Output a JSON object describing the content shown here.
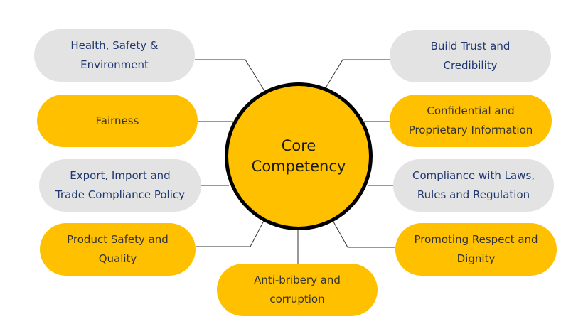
{
  "center": {
    "label": "Core\nCompetency",
    "fill": "#FFC000",
    "outline": "#000000"
  },
  "colors": {
    "grey_fill": "#E3E3E3",
    "yellow_fill": "#FFC000",
    "grey_text": "#1F3871",
    "yellow_text": "#333333",
    "line": "#333333"
  },
  "nodes": [
    {
      "id": "health-safety-environment",
      "label": "Health, Safety &\nEnvironment",
      "style": "grey"
    },
    {
      "id": "fairness",
      "label": "Fairness",
      "style": "yellow"
    },
    {
      "id": "export-import-trade",
      "label": "Export, Import and\nTrade Compliance Policy",
      "style": "grey"
    },
    {
      "id": "product-safety-quality",
      "label": "Product Safety and\nQuality",
      "style": "yellow"
    },
    {
      "id": "anti-bribery",
      "label": "Anti-bribery and\ncorruption",
      "style": "yellow"
    },
    {
      "id": "build-trust",
      "label": "Build Trust and\nCredibility",
      "style": "grey"
    },
    {
      "id": "confidential-info",
      "label": "Confidential and\nProprietary Information",
      "style": "yellow"
    },
    {
      "id": "compliance-laws",
      "label": "Compliance with Laws,\nRules and Regulation",
      "style": "grey"
    },
    {
      "id": "respect-dignity",
      "label": "Promoting Respect and\nDignity",
      "style": "yellow"
    }
  ]
}
